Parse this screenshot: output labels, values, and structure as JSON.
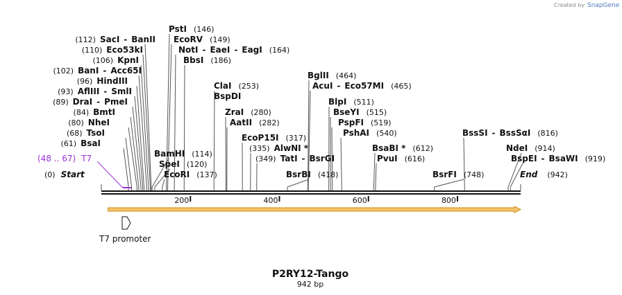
{
  "brand": {
    "prefix": "Created by",
    "name": "SnapGene"
  },
  "plasmid": {
    "name": "P2RY12-Tango",
    "length_label": "942 bp",
    "length": 942
  },
  "ruler": {
    "ticks": [
      {
        "pos": 200,
        "label": "200"
      },
      {
        "pos": 400,
        "label": "400"
      },
      {
        "pos": 600,
        "label": "600"
      },
      {
        "pos": 800,
        "label": "800"
      }
    ]
  },
  "ends": {
    "start": {
      "pos_label": "(0)",
      "name": "Start"
    },
    "end": {
      "pos_label": "(942)",
      "name": "End"
    }
  },
  "sites": [
    {
      "names": [
        "SacI",
        "BanII"
      ],
      "pos": 112,
      "pos_label": "(112)"
    },
    {
      "names": [
        "Eco53kI"
      ],
      "pos": 110,
      "pos_label": "(110)"
    },
    {
      "names": [
        "KpnI"
      ],
      "pos": 106,
      "pos_label": "(106)"
    },
    {
      "names": [
        "BanI",
        "Acc65I"
      ],
      "pos": 102,
      "pos_label": "(102)"
    },
    {
      "names": [
        "HindIII"
      ],
      "pos": 96,
      "pos_label": "(96)"
    },
    {
      "names": [
        "AflIII",
        "SmlI"
      ],
      "pos": 93,
      "pos_label": "(93)"
    },
    {
      "names": [
        "DraI",
        "PmeI"
      ],
      "pos": 89,
      "pos_label": "(89)"
    },
    {
      "names": [
        "BmtI"
      ],
      "pos": 84,
      "pos_label": "(84)"
    },
    {
      "names": [
        "NheI"
      ],
      "pos": 80,
      "pos_label": "(80)"
    },
    {
      "names": [
        "TsoI"
      ],
      "pos": 68,
      "pos_label": "(68)"
    },
    {
      "names": [
        "BsaI"
      ],
      "pos": 61,
      "pos_label": "(61)"
    },
    {
      "names": [
        "PstI"
      ],
      "pos": 146,
      "pos_label": "(146)"
    },
    {
      "names": [
        "EcoRV"
      ],
      "pos": 149,
      "pos_label": "(149)"
    },
    {
      "names": [
        "NotI",
        "EaeI",
        "EagI"
      ],
      "pos": 164,
      "pos_label": "(164)"
    },
    {
      "names": [
        "BbsI"
      ],
      "pos": 186,
      "pos_label": "(186)"
    },
    {
      "names": [
        "BamHI"
      ],
      "pos": 114,
      "pos_label": "(114)"
    },
    {
      "names": [
        "SpeI"
      ],
      "pos": 120,
      "pos_label": "(120)"
    },
    {
      "names": [
        "EcoRI"
      ],
      "pos": 137,
      "pos_label": "(137)"
    },
    {
      "names": [
        "ClaI"
      ],
      "pos": 253,
      "pos_label": "(253)"
    },
    {
      "names": [
        "BspDI"
      ],
      "pos": 253,
      "pos_label": ""
    },
    {
      "names": [
        "ZraI"
      ],
      "pos": 280,
      "pos_label": "(280)"
    },
    {
      "names": [
        "AatII"
      ],
      "pos": 282,
      "pos_label": "(282)"
    },
    {
      "names": [
        "EcoP15I"
      ],
      "pos": 317,
      "pos_label": "(317)"
    },
    {
      "names": [
        "AlwNI *"
      ],
      "pos": 335,
      "pos_label": "(335)"
    },
    {
      "names": [
        "TatI",
        "BsrGI"
      ],
      "pos": 349,
      "pos_label": "(349)"
    },
    {
      "names": [
        "BsrBI"
      ],
      "pos": 418,
      "pos_label": "(418)"
    },
    {
      "names": [
        "BglII"
      ],
      "pos": 464,
      "pos_label": "(464)"
    },
    {
      "names": [
        "AcuI",
        "Eco57MI"
      ],
      "pos": 465,
      "pos_label": "(465)"
    },
    {
      "names": [
        "BlpI"
      ],
      "pos": 511,
      "pos_label": "(511)"
    },
    {
      "names": [
        "BseYI"
      ],
      "pos": 515,
      "pos_label": "(515)"
    },
    {
      "names": [
        "PspFI"
      ],
      "pos": 519,
      "pos_label": "(519)"
    },
    {
      "names": [
        "PshAI"
      ],
      "pos": 540,
      "pos_label": "(540)"
    },
    {
      "names": [
        "BsaBI *"
      ],
      "pos": 612,
      "pos_label": "(612)"
    },
    {
      "names": [
        "PvuI"
      ],
      "pos": 616,
      "pos_label": "(616)"
    },
    {
      "names": [
        "BsrFI"
      ],
      "pos": 748,
      "pos_label": "(748)"
    },
    {
      "names": [
        "BssSI",
        "BssSαI"
      ],
      "pos": 816,
      "pos_label": "(816)"
    },
    {
      "names": [
        "NdeI"
      ],
      "pos": 914,
      "pos_label": "(914)"
    },
    {
      "names": [
        "BspEI",
        "BsaWI"
      ],
      "pos": 919,
      "pos_label": "(919)"
    }
  ],
  "features": {
    "t7": {
      "range_label": "(48 .. 67)",
      "name": "T7",
      "start": 48,
      "end": 67,
      "color": "#9b30d9"
    },
    "t7_promoter": {
      "name": "T7 promoter"
    },
    "orf": {
      "start": 15,
      "end": 942,
      "color": "#f3c46a",
      "edge_color": "#c98a16"
    }
  }
}
